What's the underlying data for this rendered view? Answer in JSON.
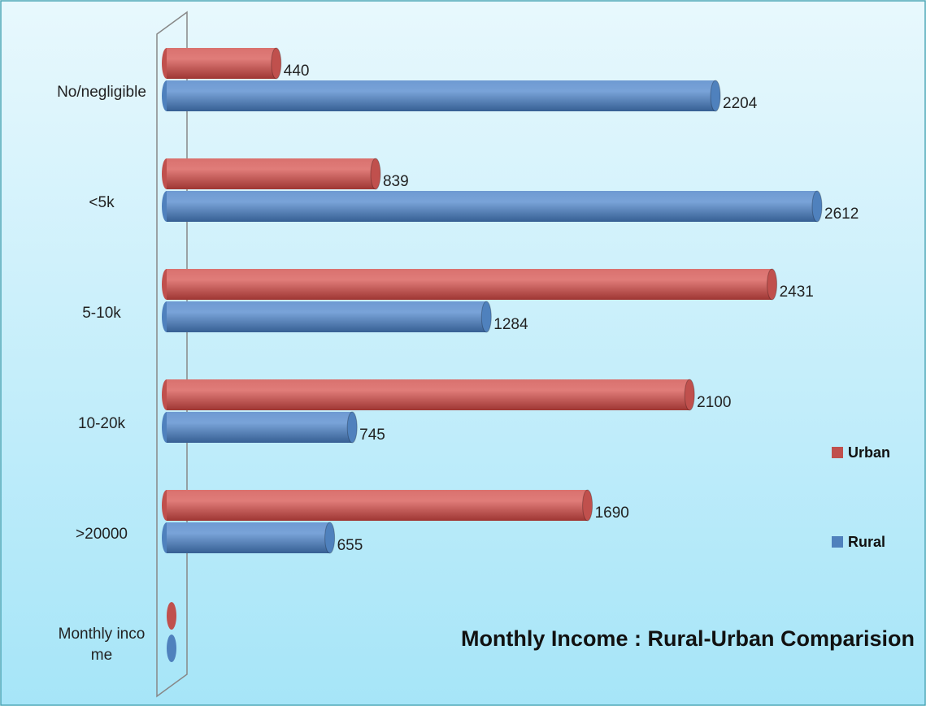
{
  "chart_data": {
    "type": "bar",
    "orientation": "horizontal",
    "title": "Monthly Income : Rural-Urban Comparision",
    "categories": [
      "No/negligible",
      "<5k",
      "5-10k",
      "10-20k",
      ">20000",
      "Monthly income"
    ],
    "series": [
      {
        "name": "Urban",
        "color": "#c0504d",
        "values": [
          440,
          839,
          2431,
          2100,
          1690,
          null
        ]
      },
      {
        "name": "Rural",
        "color": "#4f81bd",
        "values": [
          2204,
          2612,
          1284,
          745,
          655,
          null
        ]
      }
    ],
    "legend": "right"
  }
}
